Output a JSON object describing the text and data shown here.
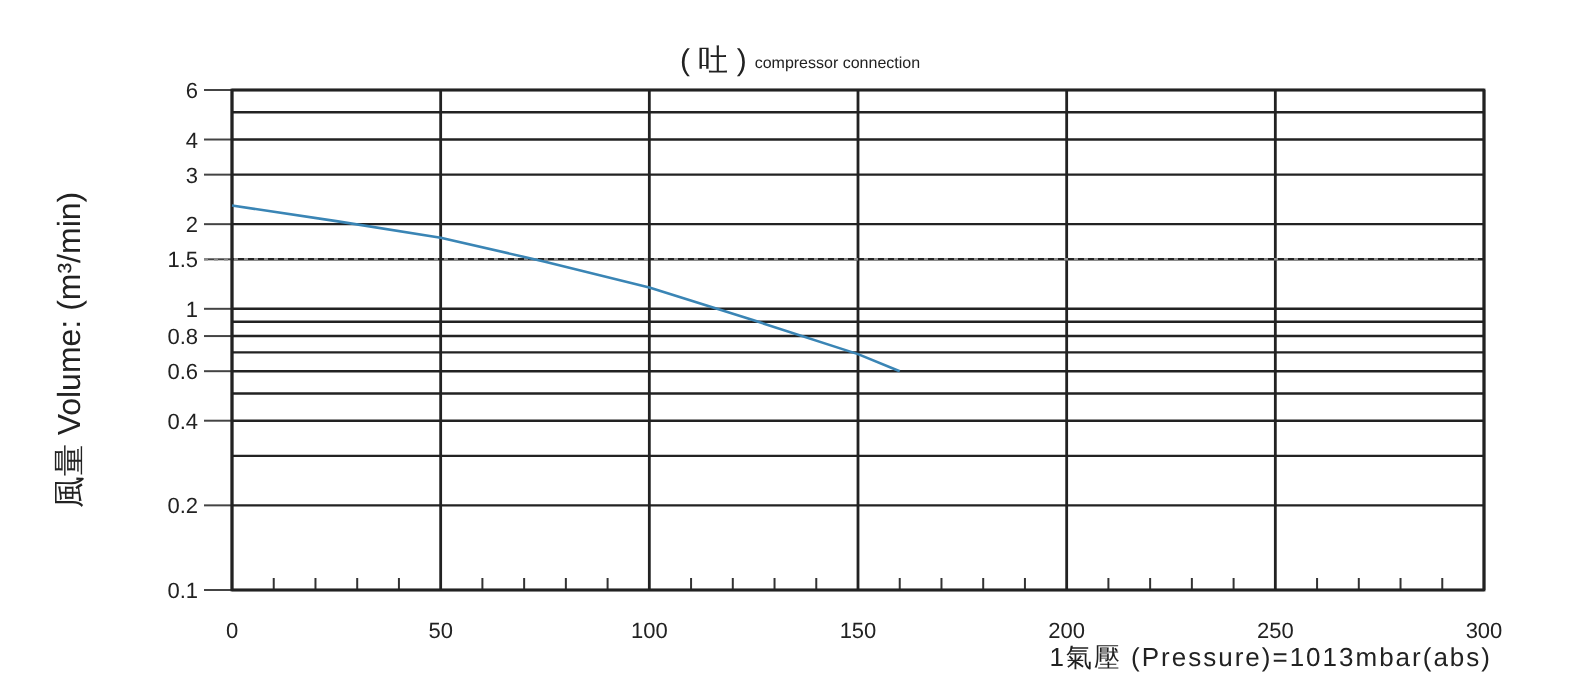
{
  "chart_data": {
    "type": "line",
    "title": "( 吐 )",
    "subtitle": "compressor connection",
    "ylabel": "風量 Volume: (m³/min)",
    "xlabel": "1氣壓 (Pressure)=1013mbar(abs)",
    "x": [
      0,
      25,
      50,
      75,
      100,
      125,
      150,
      160
    ],
    "series": [
      {
        "color": "#3a85b5",
        "values": [
          2.33,
          2.05,
          1.79,
          1.47,
          1.19,
          0.91,
          0.69,
          0.6
        ]
      }
    ],
    "log": "y",
    "xlim": [
      0,
      300
    ],
    "ylim": [
      0.1,
      6
    ],
    "xticks": [
      0,
      {
        "value": 10,
        "label": null
      },
      {
        "value": 20,
        "label": null
      },
      {
        "value": 30,
        "label": null
      },
      {
        "value": 40,
        "label": null
      },
      50,
      {
        "value": 60,
        "label": null
      },
      {
        "value": 70,
        "label": null
      },
      {
        "value": 80,
        "label": null
      },
      {
        "value": 90,
        "label": null
      },
      100,
      {
        "value": 110,
        "label": null
      },
      {
        "value": 120,
        "label": null
      },
      {
        "value": 130,
        "label": null
      },
      {
        "value": 140,
        "label": null
      },
      150,
      {
        "value": 160,
        "label": null
      },
      {
        "value": 170,
        "label": null
      },
      {
        "value": 180,
        "label": null
      },
      {
        "value": 190,
        "label": null
      },
      200,
      {
        "value": 210,
        "label": null
      },
      {
        "value": 220,
        "label": null
      },
      {
        "value": 230,
        "label": null
      },
      {
        "value": 240,
        "label": null
      },
      250,
      {
        "value": 260,
        "label": null
      },
      {
        "value": 270,
        "label": null
      },
      {
        "value": 280,
        "label": null
      },
      {
        "value": 290,
        "label": null
      },
      300
    ],
    "yticks": [
      0.1,
      0.2,
      {
        "value": 0.3,
        "label": null
      },
      0.4,
      {
        "value": 0.5,
        "label": null
      },
      0.6,
      {
        "value": 0.7,
        "label": null
      },
      0.8,
      {
        "value": 0.9,
        "label": null
      },
      1,
      1.5,
      2,
      3,
      4,
      {
        "value": 5,
        "label": null
      },
      6
    ],
    "ref_lines": [
      {
        "axis": "y",
        "value": 1.5,
        "line_style": "dotted",
        "color": "#888888"
      }
    ],
    "grid": true,
    "line_style": "solid"
  }
}
